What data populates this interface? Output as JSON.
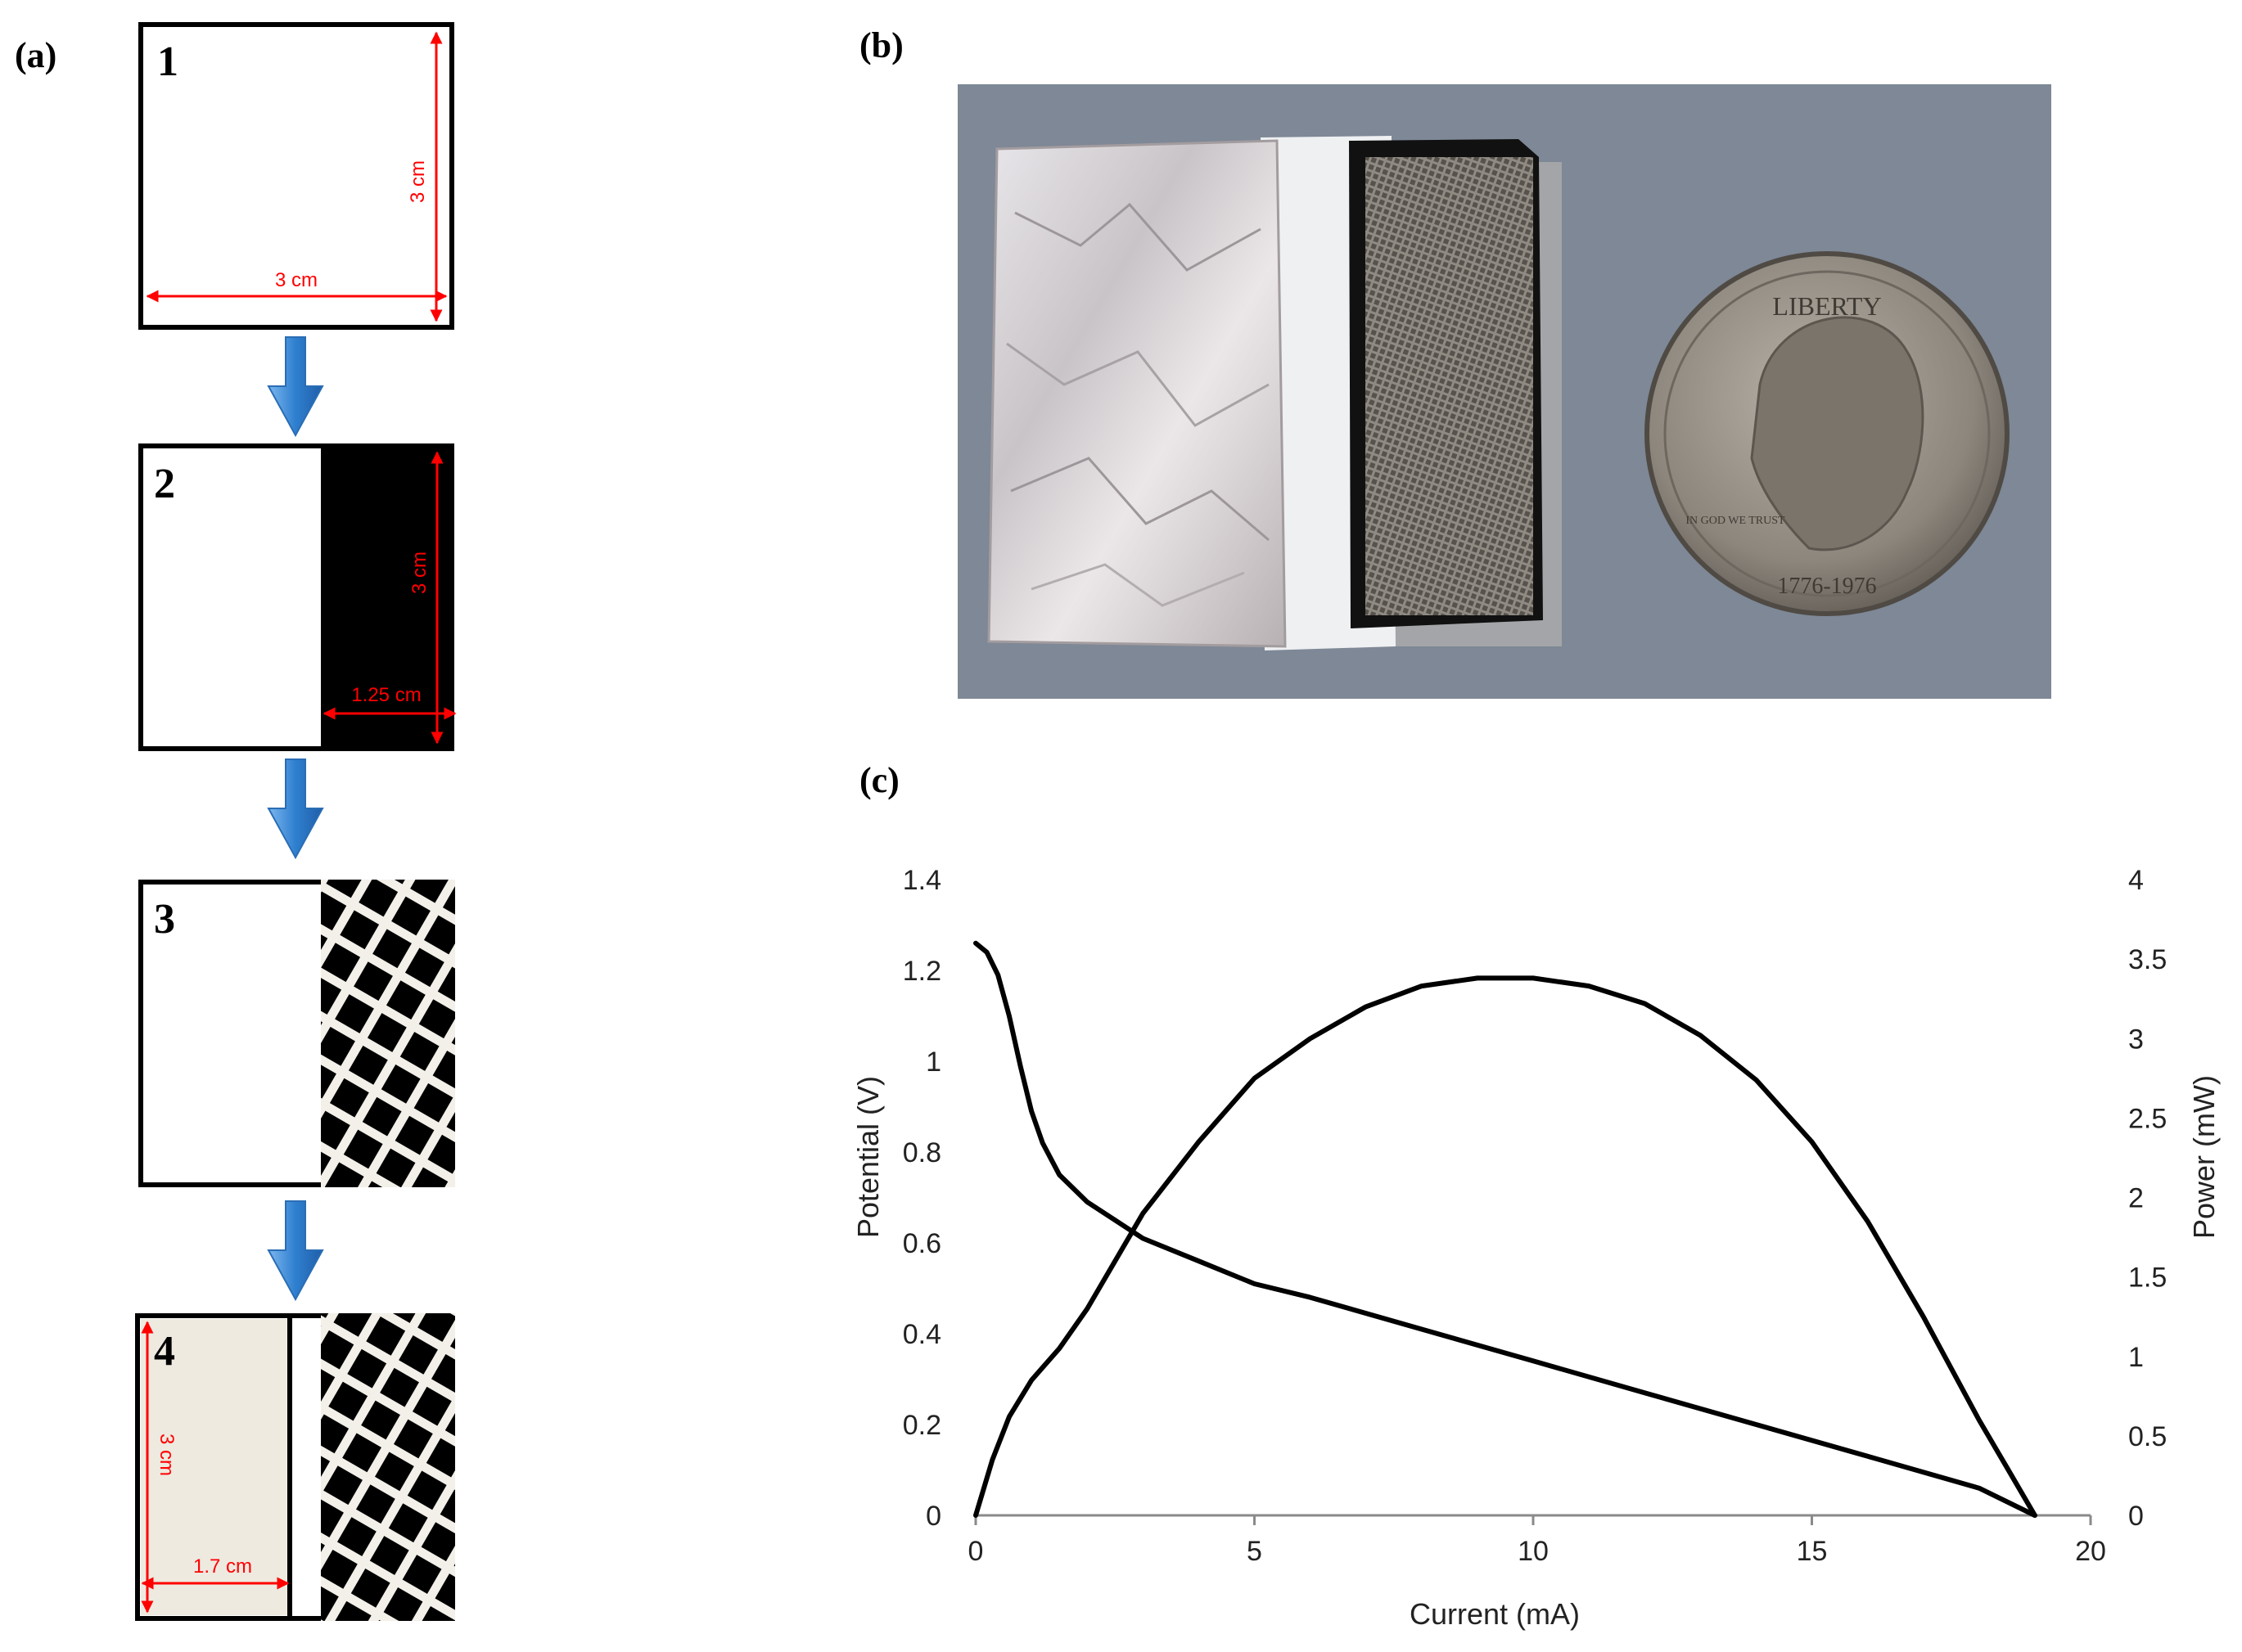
{
  "panels": {
    "a": {
      "label": "(a)",
      "steps": [
        {
          "number": "1",
          "dims": [
            "3 cm",
            "3 cm"
          ]
        },
        {
          "number": "2",
          "dims": [
            "3 cm",
            "1.25 cm"
          ]
        },
        {
          "number": "3"
        },
        {
          "number": "4",
          "dims": [
            "3 cm",
            "1.7 cm"
          ]
        }
      ],
      "colors": {
        "outline": "#000000",
        "dimension": "#ff0000",
        "arrow": "#4a90d9",
        "paper": "#eeeae0"
      }
    },
    "b": {
      "label": "(b)",
      "photo_objects": [
        "aluminum-foil",
        "separator",
        "carbon-mesh-cathode",
        "quarter-coin"
      ],
      "coin_text": [
        "LIBERTY",
        "IN GOD WE TRUST",
        "1776-1976"
      ]
    },
    "c": {
      "label": "(c)"
    }
  },
  "chart_data": {
    "type": "line",
    "xlabel": "Current (mA)",
    "ylabel": "Potential (V)",
    "y2label": "Power (mW)",
    "xlim": [
      0,
      20
    ],
    "ylim": [
      0,
      1.4
    ],
    "y2lim": [
      0,
      4
    ],
    "x_ticks": [
      "0",
      "5",
      "10",
      "15",
      "20"
    ],
    "y_ticks": [
      "0",
      "0.2",
      "0.4",
      "0.6",
      "0.8",
      "1",
      "1.2",
      "1.4"
    ],
    "y2_ticks": [
      "0",
      "0.5",
      "1",
      "1.5",
      "2",
      "2.5",
      "3",
      "3.5",
      "4"
    ],
    "grid": false,
    "series": [
      {
        "axis": "left",
        "x": [
          0,
          0.2,
          0.4,
          0.6,
          0.8,
          1.0,
          1.2,
          1.5,
          2.0,
          2.5,
          3.0,
          4.0,
          5.0,
          6.0,
          8.0,
          10.0,
          12.0,
          14.0,
          16.0,
          18.0,
          19.0
        ],
        "values": [
          1.26,
          1.24,
          1.19,
          1.1,
          0.99,
          0.89,
          0.82,
          0.75,
          0.69,
          0.65,
          0.61,
          0.56,
          0.51,
          0.48,
          0.41,
          0.34,
          0.27,
          0.2,
          0.13,
          0.06,
          0.0
        ]
      },
      {
        "axis": "right",
        "x": [
          0,
          0.3,
          0.6,
          1.0,
          1.5,
          2.0,
          3.0,
          4.0,
          5.0,
          6.0,
          7.0,
          8.0,
          9.0,
          10.0,
          11.0,
          12.0,
          13.0,
          14.0,
          15.0,
          16.0,
          17.0,
          18.0,
          18.5,
          19.0
        ],
        "values": [
          0,
          0.35,
          0.62,
          0.85,
          1.05,
          1.3,
          1.9,
          2.35,
          2.75,
          3.0,
          3.2,
          3.33,
          3.38,
          3.38,
          3.33,
          3.22,
          3.02,
          2.74,
          2.35,
          1.85,
          1.25,
          0.6,
          0.3,
          0
        ]
      }
    ]
  }
}
